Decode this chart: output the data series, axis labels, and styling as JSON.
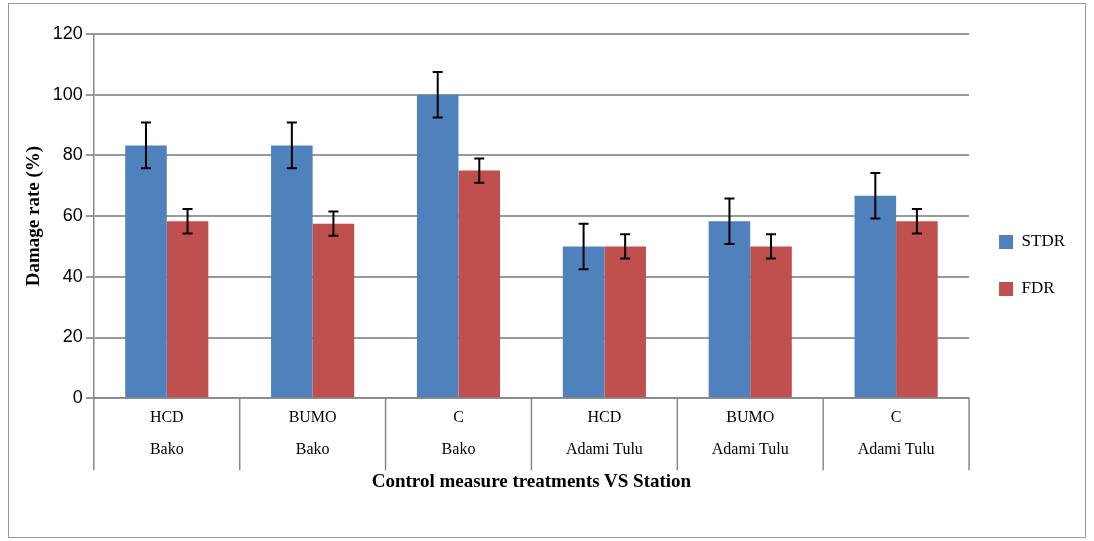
{
  "chart_data": {
    "type": "bar",
    "xlabel": "Control measure treatments VS Station",
    "ylabel": "Damage rate (%)",
    "categories": [
      "HCD\nBako",
      "BUMO\nBako",
      "C\nBako",
      "HCD\nAdami Tulu",
      "BUMO\nAdami Tulu",
      "C\nAdami Tulu"
    ],
    "series": [
      {
        "name": "STDR",
        "color": "#4f81bd",
        "values": [
          83.3,
          83.3,
          100,
          50,
          58.3,
          66.7
        ],
        "errors": [
          7.5,
          7.5,
          7.5,
          7.5,
          7.5,
          7.5
        ]
      },
      {
        "name": "FDR",
        "color": "#c0504d",
        "values": [
          58.3,
          57.5,
          75,
          50,
          50,
          58.3
        ],
        "errors": [
          4,
          4,
          4,
          4,
          4,
          4
        ]
      }
    ],
    "ylim": [
      0,
      120
    ],
    "yticks": [
      0,
      20,
      40,
      60,
      80,
      100,
      120
    ],
    "grid": "y",
    "legend": "right"
  }
}
